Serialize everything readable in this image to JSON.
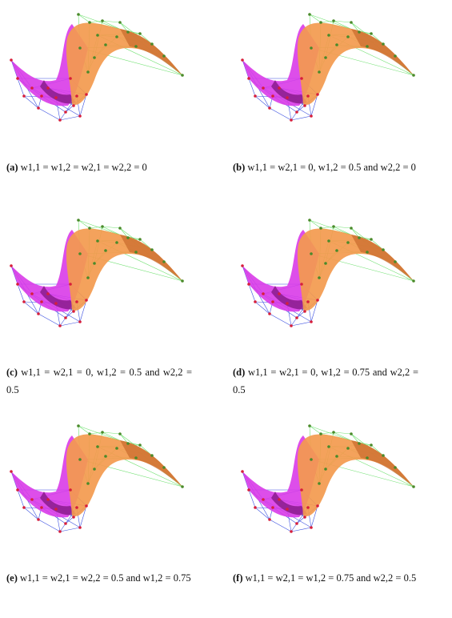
{
  "colors": {
    "surface_left": "#d93be8",
    "surface_left_dark": "#8a1c8c",
    "surface_right": "#f39a4e",
    "surface_right_dark": "#c8692c",
    "net_blue": "#3a4fe0",
    "net_green": "#6fe070",
    "point_red": "#d81e3a",
    "point_green": "#4a8a2a",
    "text": "#111111"
  },
  "figures": [
    {
      "label": "(a)",
      "caption": "w1,1 = w1,2 = w2,1 = w2,2 = 0"
    },
    {
      "label": "(b)",
      "caption": "w1,1 = w2,1 = 0, w1,2 = 0.5 and w2,2 = 0"
    },
    {
      "label": "(c)",
      "caption": "w1,1 = w2,1 = 0, w1,2 = 0.5 and w2,2 = 0.5"
    },
    {
      "label": "(d)",
      "caption": "w1,1 = w2,1 = 0, w1,2 = 0.75 and w2,2 = 0.5"
    },
    {
      "label": "(e)",
      "caption": "w1,1 = w2,1 = w2,2 = 0.5 and w1,2 = 0.75"
    },
    {
      "label": "(f)",
      "caption": "w1,1 = w2,1 = w1,2 = 0.75 and w2,2 = 0.5"
    }
  ]
}
